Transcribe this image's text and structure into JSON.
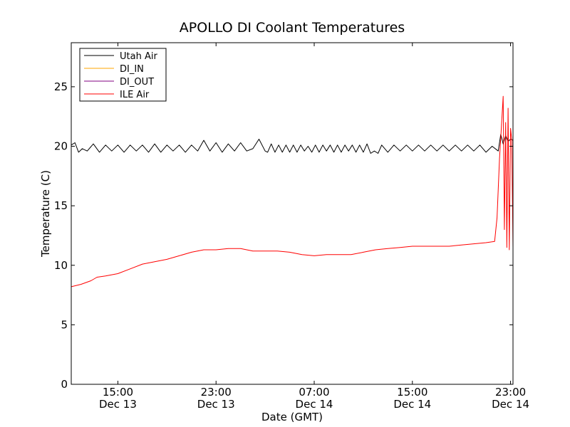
{
  "chart_data": {
    "type": "line",
    "title": "APOLLO DI Coolant Temperatures",
    "xlabel": "Date (GMT)",
    "ylabel": "Temperature (C)",
    "x_unit": "hours (GMT)",
    "xlim": [
      11.2,
      47.2
    ],
    "ylim": [
      0,
      28.7
    ],
    "yticks": [
      0,
      5,
      10,
      15,
      20,
      25
    ],
    "xticks": [
      {
        "x": 15,
        "label": "15:00",
        "sublabel": "Dec 13"
      },
      {
        "x": 23,
        "label": "23:00",
        "sublabel": "Dec 13"
      },
      {
        "x": 31,
        "label": "07:00",
        "sublabel": "Dec 14"
      },
      {
        "x": 39,
        "label": "15:00",
        "sublabel": "Dec 14"
      },
      {
        "x": 47,
        "label": "23:00",
        "sublabel": "Dec 14"
      }
    ],
    "grid": false,
    "legend": "top-left",
    "series": [
      {
        "name": "Utah Air",
        "color": "#000000",
        "x": [
          11.2,
          11.5,
          11.8,
          12.1,
          12.5,
          13.0,
          13.5,
          14.0,
          14.5,
          15.0,
          15.5,
          16.0,
          16.5,
          17.0,
          17.5,
          18.0,
          18.5,
          19.0,
          19.5,
          20.0,
          20.5,
          21.0,
          21.5,
          22.0,
          22.5,
          23.0,
          23.5,
          24.0,
          24.5,
          25.0,
          25.5,
          26.0,
          26.5,
          27.0,
          27.2,
          27.5,
          27.8,
          28.1,
          28.4,
          28.7,
          29.0,
          29.3,
          29.6,
          29.9,
          30.2,
          30.5,
          30.8,
          31.1,
          31.4,
          31.7,
          32.0,
          32.3,
          32.6,
          32.9,
          33.2,
          33.5,
          33.8,
          34.1,
          34.4,
          34.7,
          35.0,
          35.3,
          35.6,
          35.9,
          36.2,
          36.5,
          37.0,
          37.5,
          38.0,
          38.5,
          39.0,
          39.5,
          40.0,
          40.5,
          41.0,
          41.5,
          42.0,
          42.5,
          43.0,
          43.5,
          44.0,
          44.5,
          45.0,
          45.5,
          46.0,
          46.2,
          46.4,
          46.6,
          46.8,
          47.0,
          47.2
        ],
        "values": [
          20.1,
          20.3,
          19.5,
          19.8,
          19.6,
          20.2,
          19.5,
          20.1,
          19.6,
          20.1,
          19.5,
          20.1,
          19.6,
          20.1,
          19.5,
          20.2,
          19.5,
          20.1,
          19.6,
          20.1,
          19.5,
          20.1,
          19.6,
          20.5,
          19.6,
          20.3,
          19.5,
          20.2,
          19.6,
          20.3,
          19.6,
          19.8,
          20.6,
          19.6,
          19.5,
          20.2,
          19.5,
          20.1,
          19.5,
          20.1,
          19.5,
          20.1,
          19.5,
          20.1,
          19.6,
          20.0,
          19.5,
          20.1,
          19.5,
          20.1,
          19.6,
          20.1,
          19.5,
          20.1,
          19.5,
          20.1,
          19.6,
          20.1,
          19.5,
          20.1,
          19.5,
          20.2,
          19.4,
          19.6,
          19.4,
          20.1,
          19.5,
          20.1,
          19.6,
          20.1,
          19.6,
          20.1,
          19.6,
          20.1,
          19.6,
          20.1,
          19.6,
          20.1,
          19.6,
          20.1,
          19.6,
          20.1,
          19.5,
          20.0,
          19.6,
          21.0,
          20.2,
          20.9,
          20.4,
          20.6,
          20.5
        ]
      },
      {
        "name": "DI_IN",
        "color": "#ffa500",
        "x": [],
        "values": []
      },
      {
        "name": "DI_OUT",
        "color": "#800080",
        "x": [],
        "values": []
      },
      {
        "name": "ILE Air",
        "color": "#ff0000",
        "x": [
          11.2,
          12.0,
          12.8,
          13.3,
          14.0,
          15.0,
          16.0,
          17.0,
          18.0,
          19.0,
          20.0,
          21.0,
          22.0,
          23.0,
          24.0,
          25.0,
          26.0,
          27.0,
          28.0,
          29.0,
          30.0,
          31.0,
          32.0,
          33.0,
          34.0,
          35.0,
          36.0,
          37.0,
          38.0,
          39.0,
          40.0,
          41.0,
          42.0,
          43.0,
          44.0,
          45.0,
          45.7,
          45.9,
          46.1,
          46.25,
          46.4,
          46.5,
          46.6,
          46.7,
          46.8,
          46.9,
          47.0,
          47.1,
          47.2
        ],
        "values": [
          8.2,
          8.4,
          8.7,
          9.0,
          9.1,
          9.3,
          9.7,
          10.1,
          10.3,
          10.5,
          10.8,
          11.1,
          11.3,
          11.3,
          11.4,
          11.4,
          11.2,
          11.2,
          11.2,
          11.1,
          10.9,
          10.8,
          10.9,
          10.9,
          10.9,
          11.1,
          11.3,
          11.4,
          11.5,
          11.6,
          11.6,
          11.6,
          11.6,
          11.7,
          11.8,
          11.9,
          12.0,
          14.0,
          19.0,
          21.5,
          24.2,
          13.0,
          22.0,
          11.5,
          23.2,
          11.3,
          21.5,
          20.5,
          11.5
        ]
      }
    ]
  }
}
